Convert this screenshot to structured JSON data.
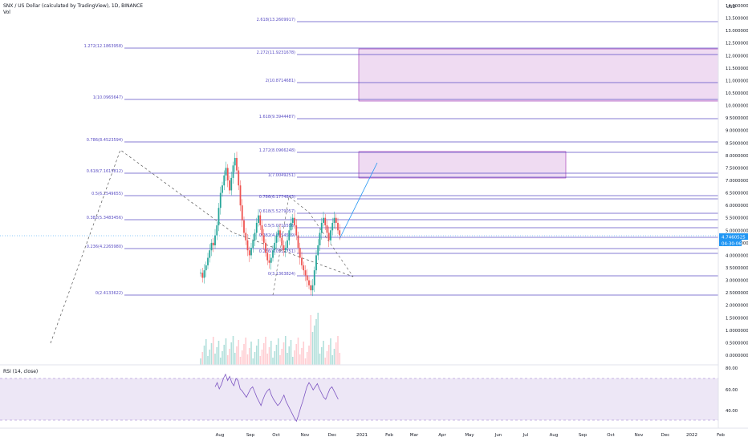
{
  "header": {
    "title": "SNX / US Dollar (calculated by TradingView), 1D, BINANCE",
    "volume_label": "Vol",
    "currency": "USD"
  },
  "rsi": {
    "label": "RSI (14, close)",
    "ticks": [
      "80.00",
      "60.00",
      "40.00"
    ]
  },
  "price_axis": {
    "ticks": [
      "14.0000000",
      "13.5000000",
      "13.0000000",
      "12.5000000",
      "12.0000000",
      "11.5000000",
      "11.0000000",
      "10.5000000",
      "10.0000000",
      "9.5000000",
      "9.0000000",
      "8.5000000",
      "8.0000000",
      "7.5000000",
      "7.0000000",
      "6.5000000",
      "6.0000000",
      "5.5000000",
      "5.0000000",
      "4.5000000",
      "4.0000000",
      "3.5000000",
      "3.0000000",
      "2.5000000",
      "2.0000000",
      "1.5000000",
      "1.0000000",
      "0.5000000",
      "0.0000000"
    ],
    "current_price": "4.7460525",
    "countdown": "04:30:06"
  },
  "time_axis": {
    "ticks": [
      "Aug",
      "Sep",
      "Oct",
      "Nov",
      "Dec",
      "2021",
      "Feb",
      "Mar",
      "Apr",
      "May",
      "Jun",
      "Jul",
      "Aug",
      "Sep",
      "Oct",
      "Nov",
      "Dec",
      "2022",
      "Feb"
    ]
  },
  "fib_labels": {
    "top": [
      "2.618(13.2609917)",
      "2.272(11.9231678)",
      "2(10.8714681)",
      "1.618(9.3944487)",
      "1.272(8.0966248)",
      "1(7.0049251)",
      "0.786(6.1774843)",
      "0.618(5.5279057)",
      "0.5(5.0716556)",
      "0.382(4.6154519)",
      "0.236(4.0512751)",
      "0(3.1363824)"
    ],
    "left": [
      "1.272(12.1863958)",
      "1(10.0965647)",
      "0.786(8.4523594)",
      "0.618(7.1615812)",
      "0.5(6.2549655)",
      "0.382(5.3483456)",
      "0.236(4.2265980)",
      "0(2.4133622)"
    ]
  },
  "colors": {
    "fib_line": "#5b4fc4",
    "zone_fill": "#e1bee7",
    "zone_border": "#9c27b0",
    "candle_up": "#26a69a",
    "candle_down": "#ef5350",
    "rsi_line": "#7e57c2",
    "rsi_band": "#ede7f6",
    "trend_line": "#2196f3",
    "price_tag": "#2196f3"
  }
}
